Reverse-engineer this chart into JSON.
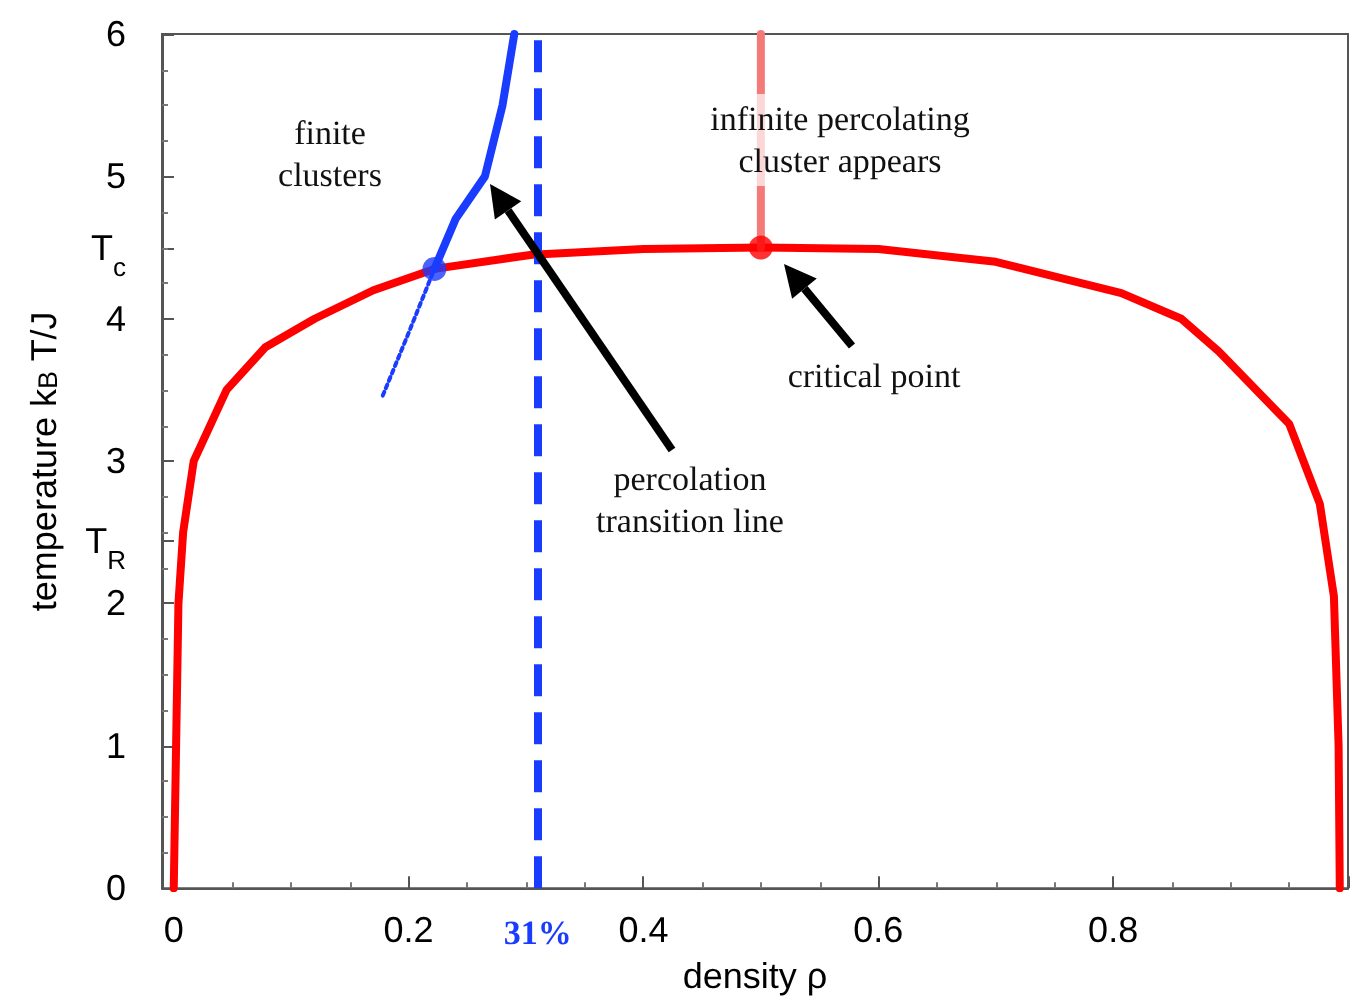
{
  "chart_data": {
    "type": "line",
    "xlabel": "density ρ",
    "ylabel": "temperature k$_{B}$ T/J",
    "xlim": [
      -0.01,
      1.0
    ],
    "xticks": [
      0,
      0.2,
      0.4,
      0.6,
      0.8,
      {
        "value": 1,
        "label": null
      }
    ],
    "ylim": [
      0,
      6
    ],
    "yticks": [
      0,
      1,
      2,
      {
        "value": 2.44,
        "label": "T$_{R}$"
      },
      3,
      4,
      {
        "value": 4.5,
        "label": "T$_{c}$"
      },
      5,
      6
    ],
    "grid": false,
    "series": [
      {
        "color": "#ff0000",
        "marker": "none",
        "line_style": "solid",
        "x": [
          0,
          0.002,
          0.004,
          0.008,
          0.017,
          0.045,
          0.078,
          0.12,
          0.17,
          0.222,
          0.305,
          0.4,
          0.5,
          0.6,
          0.7,
          0.807,
          0.858,
          0.89,
          0.95,
          0.976,
          0.988,
          0.992,
          0.993
        ],
        "values": [
          0,
          1,
          2,
          2.5,
          3,
          3.5,
          3.8,
          4.0,
          4.2,
          4.35,
          4.45,
          4.49,
          4.5,
          4.49,
          4.4,
          4.18,
          4.0,
          3.77,
          3.26,
          2.7,
          2.05,
          1,
          0
        ]
      },
      {
        "color": "#1a3cff",
        "marker": "none",
        "line_style": "solid",
        "x": [
          0.222,
          0.24,
          0.265,
          0.28,
          0.29
        ],
        "values": [
          4.35,
          4.7,
          5,
          5.5,
          6
        ]
      },
      {
        "color": "#1a3cff",
        "marker": "none",
        "line_style": "dotted",
        "x": [
          0.178,
          0.2,
          0.222
        ],
        "values": [
          3.46,
          3.9,
          4.35
        ]
      },
      {
        "color": "#f47a7a",
        "marker": "none",
        "line_style": "solid",
        "x": [
          0.5,
          0.5
        ],
        "values": [
          4.5,
          6
        ]
      },
      {
        "type": "scatter",
        "color": "#1a3cff",
        "marker": "circle",
        "x": [
          0.222
        ],
        "values": [
          4.35
        ]
      },
      {
        "type": "scatter",
        "color": "#ff0000",
        "marker": "circle",
        "x": [
          0.5
        ],
        "values": [
          4.5
        ]
      }
    ],
    "ref_lines": [
      {
        "axis": "x",
        "value": 0.31,
        "label": "31%",
        "color": "#1a3cff",
        "line_style": "dashed"
      }
    ],
    "annotations": [
      "finite\nclusters",
      "percolation\ntransition line",
      "infinite percolating\ncluster appears",
      "critical point"
    ]
  }
}
